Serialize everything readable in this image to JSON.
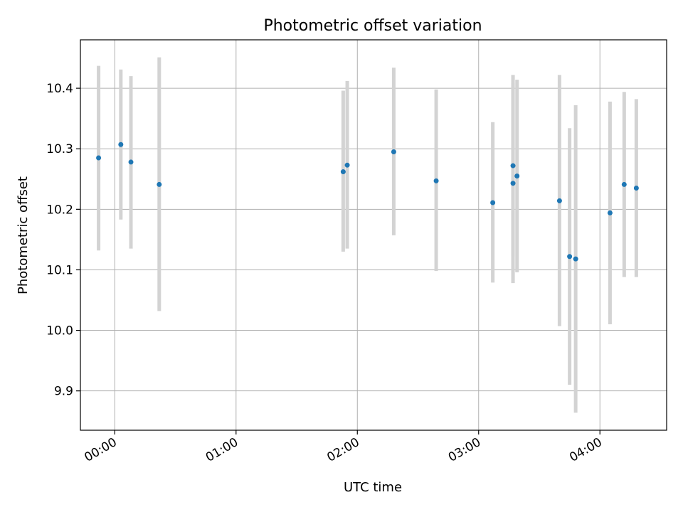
{
  "chart_data": {
    "type": "scatter",
    "title": "Photometric offset variation",
    "xlabel": "UTC time",
    "ylabel": "Photometric offset",
    "x_unit": "UTC time (HH:MM)",
    "xlim": [
      "-00:17",
      "04:33"
    ],
    "ylim": [
      9.835,
      10.48
    ],
    "x_ticks": [
      "00:00",
      "01:00",
      "02:00",
      "03:00",
      "04:00"
    ],
    "y_ticks": [
      "9.9",
      "10.0",
      "10.1",
      "10.2",
      "10.3",
      "10.4"
    ],
    "grid": true,
    "colors": {
      "marker": "#1f77b4",
      "errorbar": "#d3d3d3",
      "grid": "#b0b0b0"
    },
    "points": [
      {
        "x": "-00:08",
        "y": 10.285,
        "yerr_low": 10.132,
        "yerr_high": 10.437
      },
      {
        "x": "00:03",
        "y": 10.307,
        "yerr_low": 10.183,
        "yerr_high": 10.431
      },
      {
        "x": "00:08",
        "y": 10.278,
        "yerr_low": 10.135,
        "yerr_high": 10.42
      },
      {
        "x": "00:22",
        "y": 10.241,
        "yerr_low": 10.032,
        "yerr_high": 10.451
      },
      {
        "x": "01:53",
        "y": 10.262,
        "yerr_low": 10.13,
        "yerr_high": 10.396
      },
      {
        "x": "01:55",
        "y": 10.273,
        "yerr_low": 10.135,
        "yerr_high": 10.412
      },
      {
        "x": "02:18",
        "y": 10.295,
        "yerr_low": 10.157,
        "yerr_high": 10.434
      },
      {
        "x": "02:39",
        "y": 10.247,
        "yerr_low": 10.098,
        "yerr_high": 10.398
      },
      {
        "x": "03:07",
        "y": 10.211,
        "yerr_low": 10.079,
        "yerr_high": 10.344
      },
      {
        "x": "03:17",
        "y": 10.243,
        "yerr_low": 10.078,
        "yerr_high": 10.409
      },
      {
        "x": "03:17",
        "y": 10.272,
        "yerr_low": 10.122,
        "yerr_high": 10.422
      },
      {
        "x": "03:19",
        "y": 10.255,
        "yerr_low": 10.096,
        "yerr_high": 10.414
      },
      {
        "x": "03:40",
        "y": 10.214,
        "yerr_low": 10.007,
        "yerr_high": 10.422
      },
      {
        "x": "03:45",
        "y": 10.122,
        "yerr_low": 9.91,
        "yerr_high": 10.334
      },
      {
        "x": "03:48",
        "y": 10.118,
        "yerr_low": 9.864,
        "yerr_high": 10.372
      },
      {
        "x": "04:05",
        "y": 10.194,
        "yerr_low": 10.01,
        "yerr_high": 10.378
      },
      {
        "x": "04:12",
        "y": 10.241,
        "yerr_low": 10.088,
        "yerr_high": 10.394
      },
      {
        "x": "04:18",
        "y": 10.235,
        "yerr_low": 10.088,
        "yerr_high": 10.382
      }
    ]
  }
}
